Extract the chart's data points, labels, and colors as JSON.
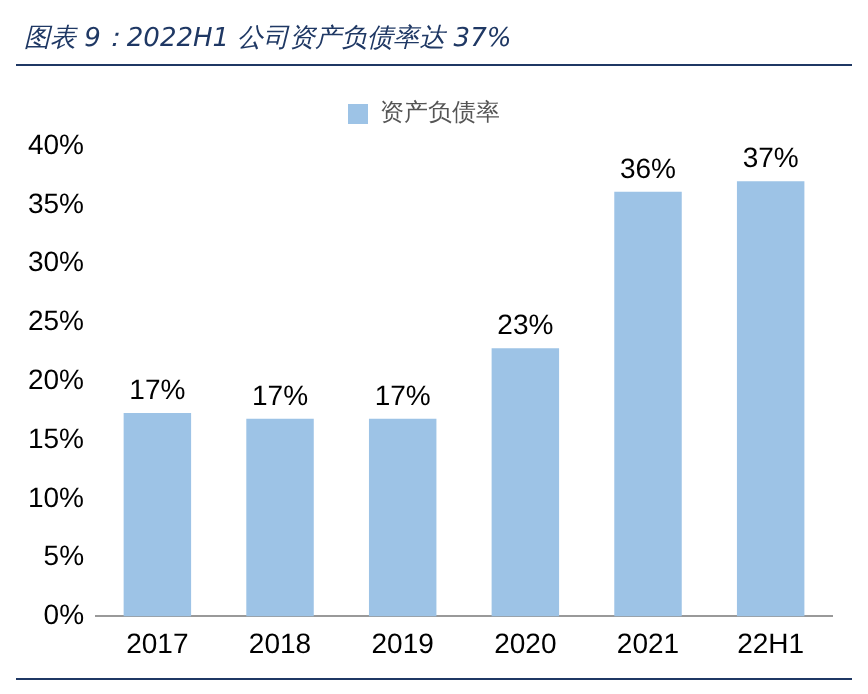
{
  "chart_data": {
    "type": "bar",
    "title": "图表 9：2022H1 公司资产负债率达 37%",
    "categories": [
      "2017",
      "2018",
      "2019",
      "2020",
      "2021",
      "22H1"
    ],
    "series": [
      {
        "name": "资产负债率",
        "color": "#9dc3e6",
        "values": [
          17.3,
          16.8,
          16.8,
          22.8,
          36.1,
          37.0
        ]
      }
    ],
    "value_labels": [
      "17%",
      "17%",
      "17%",
      "23%",
      "36%",
      "37%"
    ],
    "ylim": [
      0,
      40
    ],
    "yticks": [
      {
        "value": 0,
        "label": "0%"
      },
      {
        "value": 5,
        "label": "5%"
      },
      {
        "value": 10,
        "label": "10%"
      },
      {
        "value": 15,
        "label": "15%"
      },
      {
        "value": 20,
        "label": "20%"
      },
      {
        "value": 25,
        "label": "25%"
      },
      {
        "value": 30,
        "label": "30%"
      },
      {
        "value": 35,
        "label": "35%"
      },
      {
        "value": 40,
        "label": "40%"
      }
    ],
    "grid": false,
    "legend": "top"
  }
}
